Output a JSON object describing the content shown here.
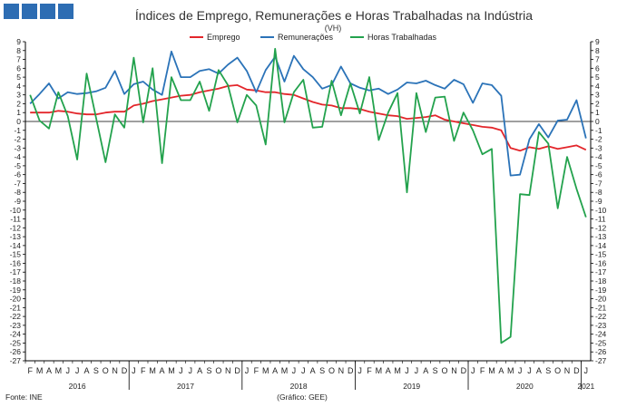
{
  "header": {
    "logo_colors": [
      "#2d6db3",
      "#2d6db3",
      "#2d6db3",
      "#2d6db3"
    ]
  },
  "chart_data": {
    "type": "line",
    "title": "Índices de Emprego, Remunerações e Horas Trabalhadas na Indústria",
    "unit_label": "(VH)",
    "ylim": [
      -27,
      9
    ],
    "yticks": [
      9,
      8,
      7,
      6,
      5,
      4,
      3,
      2,
      1,
      0,
      -1,
      -2,
      -3,
      -4,
      -5,
      -6,
      -7,
      -8,
      -9,
      -10,
      -11,
      -12,
      -13,
      -14,
      -15,
      -16,
      -17,
      -18,
      -19,
      -20,
      -21,
      -22,
      -23,
      -24,
      -25,
      -26,
      -27
    ],
    "grid": false,
    "legend_position": "top-center",
    "x": [
      "F",
      "M",
      "A",
      "M",
      "J",
      "J",
      "A",
      "S",
      "O",
      "N",
      "D",
      "J",
      "F",
      "M",
      "A",
      "M",
      "J",
      "J",
      "A",
      "S",
      "O",
      "N",
      "D",
      "J",
      "F",
      "M",
      "A",
      "M",
      "J",
      "J",
      "A",
      "S",
      "O",
      "N",
      "D",
      "J",
      "F",
      "M",
      "A",
      "M",
      "J",
      "J",
      "A",
      "S",
      "O",
      "N",
      "D",
      "J",
      "F",
      "M",
      "A",
      "M",
      "J",
      "J",
      "A",
      "S",
      "O",
      "N",
      "D",
      "J"
    ],
    "years": [
      {
        "label": "2016",
        "start": 0,
        "end": 10
      },
      {
        "label": "2017",
        "start": 11,
        "end": 22
      },
      {
        "label": "2018",
        "start": 23,
        "end": 34
      },
      {
        "label": "2019",
        "start": 35,
        "end": 46
      },
      {
        "label": "2020",
        "start": 47,
        "end": 58
      },
      {
        "label": "2021",
        "start": 59,
        "end": 59
      }
    ],
    "series": [
      {
        "name": "Emprego",
        "color": "#e3262b",
        "values": [
          1.0,
          1.0,
          1.0,
          1.2,
          1.1,
          0.9,
          0.8,
          0.8,
          1.0,
          1.1,
          1.1,
          1.8,
          2.0,
          2.3,
          2.5,
          2.7,
          2.9,
          3.0,
          3.3,
          3.5,
          3.7,
          4.0,
          4.1,
          3.6,
          3.5,
          3.3,
          3.3,
          3.1,
          3.0,
          2.6,
          2.2,
          1.9,
          1.8,
          1.5,
          1.5,
          1.4,
          1.1,
          0.9,
          0.7,
          0.6,
          0.3,
          0.4,
          0.5,
          0.7,
          0.2,
          0.0,
          -0.2,
          -0.4,
          -0.6,
          -0.7,
          -1.0,
          -3.0,
          -3.3,
          -2.9,
          -3.1,
          -2.8,
          -3.1,
          -2.9,
          -2.7,
          -3.2
        ]
      },
      {
        "name": "Remunerações",
        "color": "#2b73b8",
        "values": [
          2.0,
          3.1,
          4.3,
          2.6,
          3.3,
          3.1,
          3.2,
          3.4,
          3.8,
          5.7,
          3.1,
          4.2,
          4.5,
          3.6,
          3.0,
          7.9,
          5.0,
          5.0,
          5.7,
          5.9,
          5.4,
          6.4,
          7.2,
          5.7,
          3.3,
          5.8,
          7.3,
          4.5,
          7.4,
          5.9,
          5.0,
          3.7,
          4.1,
          6.2,
          4.3,
          3.8,
          3.5,
          3.7,
          3.1,
          3.6,
          4.4,
          4.3,
          4.6,
          4.1,
          3.7,
          4.7,
          4.2,
          2.1,
          4.3,
          4.1,
          2.9,
          -6.1,
          -6.0,
          -2.0,
          -0.3,
          -1.8,
          0.1,
          0.2,
          2.4,
          -1.9
        ]
      },
      {
        "name": "Horas Trabalhadas",
        "color": "#23a24d",
        "values": [
          3.0,
          0.1,
          -0.8,
          3.3,
          0.6,
          -4.3,
          5.4,
          0.4,
          -4.6,
          0.8,
          -0.7,
          7.2,
          -0.1,
          6.0,
          -4.7,
          5.0,
          2.4,
          2.4,
          4.5,
          1.2,
          5.8,
          4.1,
          -0.1,
          3.0,
          1.8,
          -2.6,
          8.2,
          -0.1,
          3.3,
          4.7,
          -0.7,
          -0.6,
          4.6,
          0.7,
          4.3,
          0.9,
          5.0,
          -2.1,
          1.0,
          3.2,
          -8.0,
          3.2,
          -1.2,
          2.7,
          2.8,
          -2.2,
          1.0,
          -1.0,
          -3.7,
          -3.1,
          -25.0,
          -24.3,
          -8.2,
          -8.3,
          -1.2,
          -2.5,
          -9.8,
          -4.0,
          -7.6,
          -10.8
        ]
      }
    ]
  },
  "footer": {
    "source": "Fonte: INE",
    "credit": "(Gráfico: GEE)"
  }
}
